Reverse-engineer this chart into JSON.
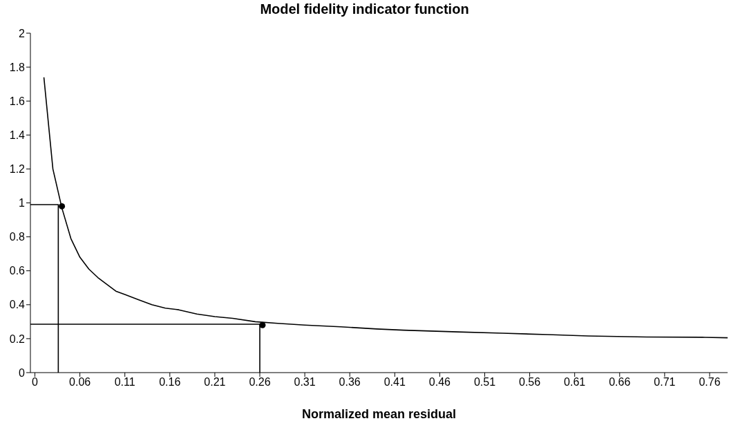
{
  "chart_data": {
    "type": "line",
    "title": "Model fidelity indicator function",
    "xlabel": "Normalized mean residual",
    "xlim": [
      0.005,
      0.78
    ],
    "xticks": [
      {
        "value": 0.01,
        "label": "0"
      },
      0.06,
      0.11,
      0.16,
      0.21,
      0.26,
      0.31,
      0.36,
      0.41,
      0.46,
      0.51,
      0.56,
      0.61,
      0.66,
      0.71,
      0.76
    ],
    "ylim": [
      0,
      2
    ],
    "yticks": [
      0,
      0.2,
      0.4,
      0.6,
      0.8,
      1,
      1.2,
      1.4,
      1.6,
      1.8,
      2
    ],
    "grid": false,
    "marker": "none",
    "line_style": "solid",
    "series": [
      {
        "color": "#000000",
        "x": [
          0.02,
          0.03,
          0.04,
          0.05,
          0.06,
          0.07,
          0.08,
          0.09,
          0.1,
          0.11,
          0.125,
          0.14,
          0.155,
          0.17,
          0.19,
          0.21,
          0.23,
          0.255,
          0.28,
          0.31,
          0.35,
          0.39,
          0.42,
          0.48,
          0.53,
          0.58,
          0.625,
          0.69,
          0.755,
          0.78
        ],
        "values": [
          1.74,
          1.2,
          0.97,
          0.79,
          0.68,
          0.61,
          0.56,
          0.52,
          0.48,
          0.46,
          0.43,
          0.4,
          0.38,
          0.37,
          0.345,
          0.33,
          0.32,
          0.3,
          0.29,
          0.28,
          0.27,
          0.257,
          0.25,
          0.24,
          0.232,
          0.224,
          0.216,
          0.21,
          0.208,
          0.205
        ]
      },
      {
        "color": "#000000",
        "x": [
          0.005,
          0.036,
          0.036
        ],
        "values": [
          0.99,
          0.99,
          0
        ]
      },
      {
        "color": "#000000",
        "x": [
          0.005,
          0.26,
          0.26
        ],
        "values": [
          0.285,
          0.285,
          0
        ]
      },
      {
        "type": "scatter",
        "marker": "circle",
        "color": "#000000",
        "x": [
          0.04,
          0.263
        ],
        "values": [
          0.98,
          0.28
        ]
      }
    ]
  }
}
